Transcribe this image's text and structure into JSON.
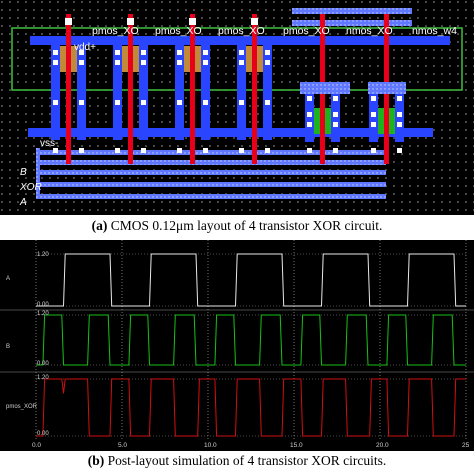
{
  "layout": {
    "transistor_labels": [
      "pmos_XO",
      "pmos_XO",
      "pmos_XO",
      "pmos_XO",
      "nmos_XO",
      "nmos_w4"
    ],
    "vdd_label": "vdd+",
    "vss_label": "vss-",
    "pin_labels": [
      "B",
      "XOR",
      "A"
    ],
    "colors": {
      "poly": "#e8001a",
      "metal1": "#2a45ff",
      "metal2": "#8aa0ff",
      "pdiff": "#c08a3a",
      "ndiff": "#1fb21f",
      "contact": "#ffffff",
      "well_outline": "#3fbf3f"
    }
  },
  "caption_a": {
    "tag": "(a)",
    "text": " CMOS 0.12μm layout of 4 transistor XOR circuit."
  },
  "caption_b": {
    "tag": "(b)",
    "text": " Post-layout simulation of 4 transistor XOR circuits."
  },
  "simulation": {
    "signals": [
      {
        "name": "A",
        "max_label": "1.20",
        "min_label": "0.00",
        "color": "#e8e8e8"
      },
      {
        "name": "B",
        "max_label": "1.20",
        "min_label": "0.00",
        "color": "#18c018"
      },
      {
        "name": "pmos_XOR",
        "max_label": "1.20",
        "min_label": "0.00",
        "color": "#d01010"
      }
    ],
    "x_ticks": [
      "0.0",
      "5.0",
      "10.0",
      "15.0",
      "20.0",
      "25"
    ]
  },
  "chart_data": {
    "type": "line",
    "title": "",
    "xlabel": "",
    "ylabel": "",
    "x_ticks": [
      0,
      5,
      10,
      15,
      20,
      25
    ],
    "xlim": [
      0,
      25
    ],
    "ylim": [
      0,
      1.2
    ],
    "series": [
      {
        "name": "A",
        "points": [
          [
            0,
            0
          ],
          [
            1.6,
            0
          ],
          [
            1.7,
            1.2
          ],
          [
            4.3,
            1.2
          ],
          [
            4.4,
            0
          ],
          [
            6.6,
            0
          ],
          [
            6.7,
            1.2
          ],
          [
            9.3,
            1.2
          ],
          [
            9.4,
            0
          ],
          [
            11.6,
            0
          ],
          [
            11.7,
            1.2
          ],
          [
            14.3,
            1.2
          ],
          [
            14.4,
            0
          ],
          [
            16.6,
            0
          ],
          [
            16.7,
            1.2
          ],
          [
            19.3,
            1.2
          ],
          [
            19.4,
            0
          ],
          [
            21.6,
            0
          ],
          [
            21.7,
            1.2
          ],
          [
            24.3,
            1.2
          ],
          [
            24.4,
            0
          ],
          [
            25,
            0
          ]
        ]
      },
      {
        "name": "B",
        "points": [
          [
            0,
            0
          ],
          [
            0.4,
            0
          ],
          [
            0.5,
            1.2
          ],
          [
            1.5,
            1.2
          ],
          [
            1.6,
            0
          ],
          [
            3.0,
            0
          ],
          [
            3.1,
            1.2
          ],
          [
            4.2,
            1.2
          ],
          [
            4.3,
            0
          ],
          [
            5.4,
            0
          ],
          [
            5.5,
            1.2
          ],
          [
            6.5,
            1.2
          ],
          [
            6.6,
            0
          ],
          [
            8.0,
            0
          ],
          [
            8.1,
            1.2
          ],
          [
            9.2,
            1.2
          ],
          [
            9.3,
            0
          ],
          [
            10.4,
            0
          ],
          [
            10.5,
            1.2
          ],
          [
            11.5,
            1.2
          ],
          [
            11.6,
            0
          ],
          [
            13.0,
            0
          ],
          [
            13.1,
            1.2
          ],
          [
            14.2,
            1.2
          ],
          [
            14.3,
            0
          ],
          [
            15.4,
            0
          ],
          [
            15.5,
            1.2
          ],
          [
            16.5,
            1.2
          ],
          [
            16.6,
            0
          ],
          [
            18.0,
            0
          ],
          [
            18.1,
            1.2
          ],
          [
            19.2,
            1.2
          ],
          [
            19.3,
            0
          ],
          [
            20.4,
            0
          ],
          [
            20.5,
            1.2
          ],
          [
            21.5,
            1.2
          ],
          [
            21.6,
            0
          ],
          [
            23.0,
            0
          ],
          [
            23.1,
            1.2
          ],
          [
            24.2,
            1.2
          ],
          [
            24.3,
            0
          ],
          [
            25,
            0
          ]
        ]
      },
      {
        "name": "pmos_XOR",
        "points": [
          [
            0,
            0
          ],
          [
            0.4,
            0
          ],
          [
            0.5,
            1.2
          ],
          [
            1.5,
            1.2
          ],
          [
            1.6,
            0.9
          ],
          [
            1.7,
            1.2
          ],
          [
            3.0,
            1.2
          ],
          [
            3.1,
            0
          ],
          [
            4.3,
            0
          ],
          [
            4.4,
            1.2
          ],
          [
            5.4,
            1.2
          ],
          [
            5.5,
            0
          ],
          [
            6.6,
            0
          ],
          [
            6.7,
            1.2
          ],
          [
            8.0,
            1.2
          ],
          [
            8.1,
            0
          ],
          [
            9.4,
            0
          ],
          [
            9.5,
            1.2
          ],
          [
            10.4,
            1.2
          ],
          [
            10.5,
            0
          ],
          [
            11.6,
            0
          ],
          [
            11.7,
            1.2
          ],
          [
            13.0,
            1.2
          ],
          [
            13.1,
            0
          ],
          [
            14.3,
            0
          ],
          [
            14.4,
            1.2
          ],
          [
            15.4,
            1.2
          ],
          [
            15.5,
            0
          ],
          [
            16.6,
            0
          ],
          [
            16.7,
            1.2
          ],
          [
            18.0,
            1.2
          ],
          [
            18.1,
            0
          ],
          [
            19.4,
            0
          ],
          [
            19.5,
            1.2
          ],
          [
            20.4,
            1.2
          ],
          [
            20.5,
            0
          ],
          [
            21.6,
            0
          ],
          [
            21.7,
            1.2
          ],
          [
            23.0,
            1.2
          ],
          [
            23.1,
            0
          ],
          [
            24.3,
            0
          ],
          [
            24.4,
            1.2
          ],
          [
            25,
            1.2
          ]
        ]
      }
    ]
  }
}
